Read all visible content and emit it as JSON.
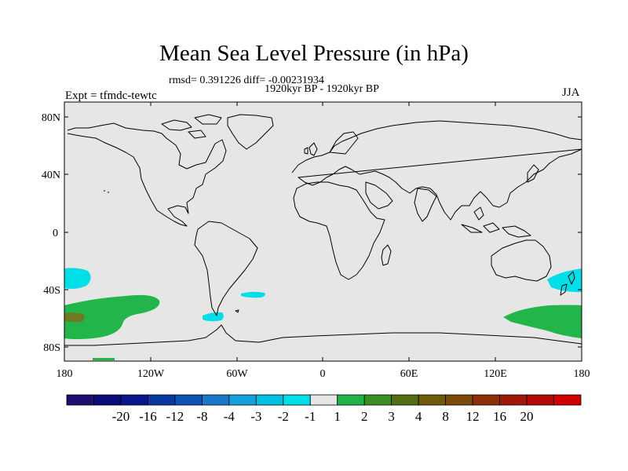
{
  "header": {
    "title": "Mean Sea Level Pressure (in hPa)",
    "stats": "rmsd= 0.391226 diff= -0.00231934",
    "period": "1920kyr BP - 1920kyr BP",
    "experiment": "Expt = tfmdc-tewtc",
    "season": "JJA"
  },
  "map": {
    "projection": "cylindrical-equidistant",
    "lat_ticks": [
      "80N",
      "40N",
      "0",
      "40S",
      "80S"
    ],
    "lon_ticks": [
      "180",
      "120W",
      "60W",
      "0",
      "60E",
      "120E",
      "180"
    ],
    "background_color": "#e6e6e6",
    "anomaly_regions": [
      {
        "name": "south-pacific-low-west",
        "value_class": "-2 to -1",
        "color": "#00cfe8"
      },
      {
        "name": "south-pacific-positive",
        "value_class": "1 to 2",
        "color": "#22b64a"
      },
      {
        "name": "south-pacific-positive-core",
        "value_class": "3 to 4",
        "color": "#5a7a1c"
      },
      {
        "name": "drake-passage-low",
        "value_class": "-2 to -1",
        "color": "#00cfe8"
      },
      {
        "name": "south-atlantic-low",
        "value_class": "-2 to -1",
        "color": "#00cfe8"
      },
      {
        "name": "tasman-sea-low",
        "value_class": "-2 to -1",
        "color": "#00cfe8"
      },
      {
        "name": "southern-ocean-positive-east",
        "value_class": "1 to 2",
        "color": "#22b64a"
      }
    ]
  },
  "colorbar": {
    "labels": [
      "-20",
      "-16",
      "-12",
      "-8",
      "-4",
      "-3",
      "-2",
      "-1",
      "1",
      "2",
      "3",
      "4",
      "8",
      "12",
      "16",
      "20"
    ],
    "colors": [
      "#1e0f6e",
      "#0a0a78",
      "#08188c",
      "#0a38a0",
      "#0c52b4",
      "#1b78c8",
      "#14a0dc",
      "#00c0e4",
      "#00dfe8",
      "#e6e6e6",
      "#20b448",
      "#3c8c24",
      "#556e14",
      "#6e5a0a",
      "#7c4a0a",
      "#8c3008",
      "#a0180a",
      "#b40808",
      "#d00000"
    ]
  }
}
